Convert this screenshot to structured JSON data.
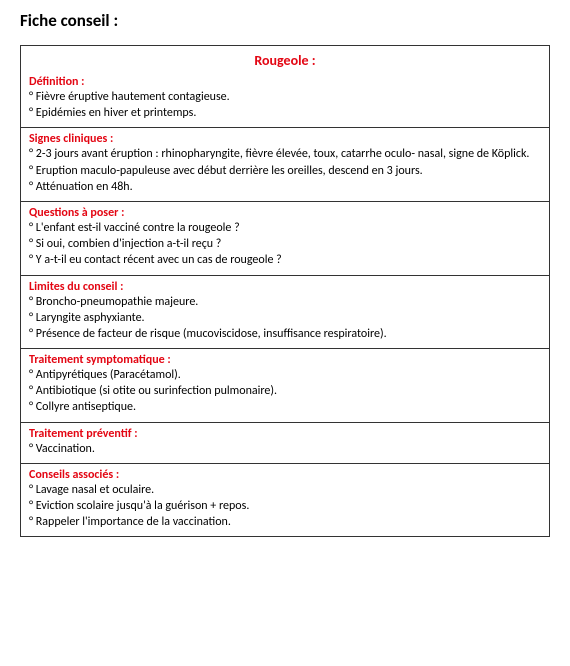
{
  "page_title": "Fiche conseil :",
  "fiche_title": "Rougeole :",
  "colors": {
    "accent": "#e30613",
    "text": "#000000",
    "border": "#333333",
    "background": "#ffffff"
  },
  "typography": {
    "font_family": "Calibri, Arial, sans-serif",
    "page_title_fontsize": 17,
    "fiche_title_fontsize": 14,
    "section_head_fontsize": 12,
    "body_fontsize": 12
  },
  "sections": [
    {
      "heading": "Définition :",
      "items": [
        "° Fièvre éruptive hautement contagieuse.",
        "° Epidémies en hiver et printemps."
      ]
    },
    {
      "heading": "Signes cliniques :",
      "items": [
        "° 2-3 jours avant éruption : rhinopharyngite, fièvre élevée, toux, catarrhe oculo- nasal, signe de Köplick.",
        "° Eruption maculo-papuleuse avec début derrière les oreilles, descend en 3 jours.",
        "° Atténuation en 48h."
      ]
    },
    {
      "heading": "Questions à poser :",
      "items": [
        "° L'enfant est-il vacciné contre la rougeole ?",
        "° Si oui, combien d'injection a-t-il reçu ?",
        "° Y a-t-il eu contact récent avec un cas de rougeole ?"
      ]
    },
    {
      "heading": "Limites du conseil :",
      "items": [
        "° Broncho-pneumopathie majeure.",
        "° Laryngite asphyxiante.",
        "° Présence de facteur de risque (mucoviscidose, insuffisance respiratoire)."
      ]
    },
    {
      "heading": "Traitement symptomatique :",
      "items": [
        "° Antipyrétiques (Paracétamol).",
        "° Antibiotique (si otite ou surinfection pulmonaire).",
        "° Collyre antiseptique."
      ]
    },
    {
      "heading": "Traitement préventif :",
      "items": [
        "° Vaccination."
      ]
    },
    {
      "heading": "Conseils associés :",
      "items": [
        "° Lavage nasal et oculaire.",
        "° Eviction scolaire jusqu'à la guérison + repos.",
        "° Rappeler l'importance de la vaccination."
      ]
    }
  ]
}
